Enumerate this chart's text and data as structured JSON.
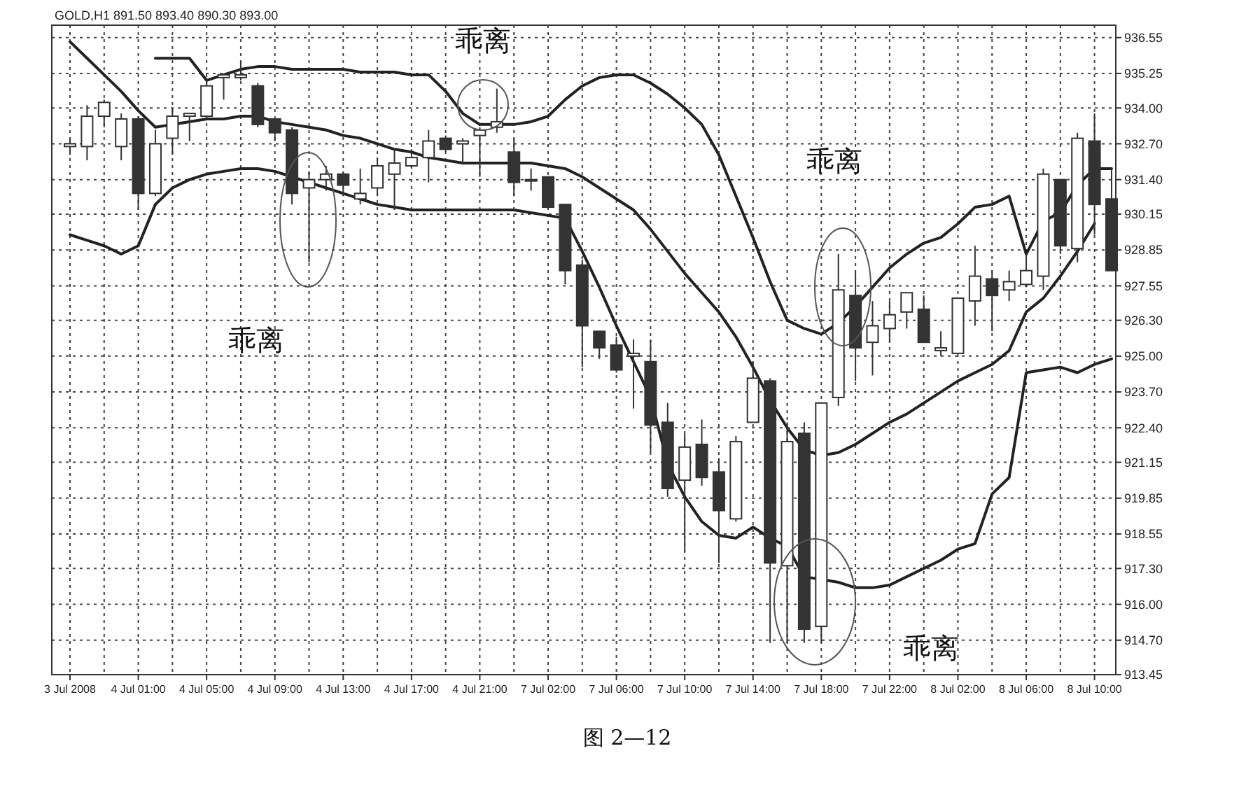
{
  "chart_data": {
    "type": "candlestick",
    "title": "GOLD,H1 891.50 893.40 890.30 893.00",
    "categories": [
      "3 Jul 2008",
      null,
      null,
      null,
      "4 Jul 01:00",
      null,
      null,
      null,
      "4 Jul 05:00",
      null,
      null,
      null,
      "4 Jul 09:00",
      null,
      null,
      null,
      "4 Jul 13:00",
      null,
      null,
      null,
      "4 Jul 17:00",
      null,
      null,
      null,
      "4 Jul 21:00",
      null,
      null,
      null,
      "7 Jul 02:00",
      null,
      null,
      null,
      "7 Jul 06:00",
      null,
      null,
      null,
      "7 Jul 10:00",
      null,
      null,
      null,
      "7 Jul 14:00",
      null,
      null,
      null,
      "7 Jul 18:00",
      null,
      null,
      null,
      "7 Jul 22:00",
      null,
      null,
      null,
      "8 Jul 02:00",
      null,
      null,
      null,
      "8 Jul 06:00",
      null,
      null,
      null,
      "8 Jul 10:00",
      null
    ],
    "color": "#333333",
    "ohlc": [
      [
        932.6,
        932.9,
        932.3,
        932.7
      ],
      [
        932.6,
        934.1,
        932.1,
        933.7
      ],
      [
        933.7,
        934.3,
        933.3,
        934.2
      ],
      [
        932.6,
        933.8,
        932.1,
        933.6
      ],
      [
        933.6,
        933.7,
        930.3,
        930.9
      ],
      [
        930.9,
        933.2,
        930.8,
        932.7
      ],
      [
        932.9,
        934.0,
        932.3,
        933.7
      ],
      [
        933.7,
        933.8,
        932.8,
        933.8
      ],
      [
        933.7,
        935.0,
        933.6,
        934.8
      ],
      [
        935.1,
        935.2,
        934.3,
        935.2
      ],
      [
        935.1,
        935.7,
        935.0,
        935.2
      ],
      [
        934.8,
        934.9,
        933.3,
        933.4
      ],
      [
        933.6,
        933.6,
        932.8,
        933.1
      ],
      [
        933.2,
        933.3,
        930.5,
        930.9
      ],
      [
        931.1,
        931.7,
        928.4,
        931.4
      ],
      [
        931.4,
        931.9,
        931.0,
        931.6
      ],
      [
        931.6,
        931.7,
        930.8,
        931.2
      ],
      [
        930.7,
        931.8,
        930.5,
        930.9
      ],
      [
        931.1,
        932.2,
        930.8,
        931.9
      ],
      [
        931.6,
        932.5,
        930.3,
        932.0
      ],
      [
        931.9,
        932.5,
        931.8,
        932.2
      ],
      [
        932.2,
        933.2,
        931.3,
        932.8
      ],
      [
        932.9,
        933.0,
        932.4,
        932.5
      ],
      [
        932.7,
        932.9,
        932.0,
        932.8
      ],
      [
        933.0,
        933.3,
        931.5,
        933.2
      ],
      [
        933.3,
        934.7,
        933.1,
        933.5
      ],
      [
        932.4,
        932.9,
        930.8,
        931.3
      ],
      [
        931.4,
        931.8,
        931.0,
        931.4
      ],
      [
        931.5,
        931.5,
        930.3,
        930.4
      ],
      [
        930.5,
        930.5,
        927.6,
        928.1
      ],
      [
        928.3,
        928.5,
        924.6,
        926.1
      ],
      [
        925.9,
        925.9,
        924.9,
        925.3
      ],
      [
        925.4,
        925.7,
        924.4,
        924.5
      ],
      [
        925.0,
        925.6,
        923.1,
        925.1
      ],
      [
        924.8,
        925.6,
        921.5,
        922.5
      ],
      [
        922.6,
        923.3,
        919.9,
        920.2
      ],
      [
        920.5,
        922.2,
        917.9,
        921.7
      ],
      [
        921.8,
        922.7,
        920.3,
        920.6
      ],
      [
        920.8,
        921.3,
        917.5,
        919.4
      ],
      [
        919.1,
        922.1,
        919.0,
        921.9
      ],
      [
        922.6,
        924.8,
        922.6,
        924.2
      ],
      [
        924.1,
        924.2,
        914.6,
        917.5
      ],
      [
        917.4,
        922.6,
        914.6,
        921.9
      ],
      [
        922.2,
        922.6,
        914.6,
        915.1
      ],
      [
        915.2,
        923.3,
        914.6,
        923.3
      ],
      [
        923.5,
        928.7,
        923.2,
        927.4
      ],
      [
        927.2,
        928.1,
        924.1,
        925.3
      ],
      [
        925.5,
        927.0,
        924.3,
        926.1
      ],
      [
        926.0,
        927.0,
        925.5,
        926.5
      ],
      [
        926.6,
        927.3,
        926.0,
        927.3
      ],
      [
        926.7,
        927.2,
        925.5,
        925.5
      ],
      [
        925.2,
        925.9,
        925.0,
        925.3
      ],
      [
        925.1,
        927.1,
        925.1,
        927.1
      ],
      [
        927.0,
        929.0,
        926.1,
        927.9
      ],
      [
        927.8,
        928.1,
        925.9,
        927.2
      ],
      [
        927.4,
        928.1,
        927.0,
        927.7
      ],
      [
        927.6,
        928.7,
        927.5,
        928.1
      ],
      [
        927.9,
        931.8,
        927.4,
        931.6
      ],
      [
        931.4,
        931.4,
        928.7,
        929.0
      ],
      [
        928.9,
        933.1,
        928.4,
        932.9
      ],
      [
        932.8,
        933.8,
        929.4,
        930.5
      ],
      [
        930.7,
        931.8,
        928.1,
        928.1
      ]
    ],
    "series": [
      {
        "type": "line",
        "color": "#222222",
        "values": [
          null,
          null,
          null,
          null,
          null,
          935.8,
          935.8,
          935.8,
          935.0,
          935.2,
          935.4,
          935.5,
          935.5,
          935.4,
          935.4,
          935.4,
          935.4,
          935.3,
          935.3,
          935.3,
          935.2,
          935.2,
          934.6,
          933.8,
          933.4,
          933.4,
          933.4,
          933.5,
          933.7,
          934.3,
          934.8,
          935.1,
          935.2,
          935.2,
          934.9,
          934.5,
          934.0,
          933.4,
          932.3,
          930.8,
          929.3,
          927.7,
          926.3,
          926.0,
          925.8,
          926.2,
          926.8,
          927.5,
          928.2,
          928.7,
          929.1,
          929.3,
          929.8,
          930.4,
          930.5,
          930.8,
          928.7,
          929.9,
          930.2,
          931.2,
          931.8,
          931.8
        ]
      },
      {
        "type": "line",
        "color": "#222222",
        "values": [
          936.4,
          935.8,
          935.2,
          934.6,
          933.9,
          933.3,
          933.4,
          933.5,
          933.6,
          933.6,
          933.7,
          933.7,
          933.5,
          933.4,
          933.3,
          933.2,
          933.0,
          932.9,
          932.7,
          932.5,
          932.4,
          932.2,
          932.1,
          932.0,
          932.0,
          932.0,
          932.0,
          932.0,
          931.9,
          931.8,
          931.5,
          931.1,
          930.7,
          930.3,
          929.6,
          928.8,
          928.0,
          927.3,
          926.6,
          925.7,
          924.6,
          923.4,
          922.4,
          921.6,
          921.4,
          921.5,
          921.8,
          922.2,
          922.6,
          922.9,
          923.3,
          923.7,
          924.1,
          924.4,
          924.7,
          925.2,
          926.6,
          927.1,
          927.9,
          928.8,
          929.8,
          null
        ]
      },
      {
        "type": "line",
        "color": "#222222",
        "values": [
          929.4,
          929.2,
          929.0,
          928.7,
          929.0,
          930.5,
          931.1,
          931.4,
          931.6,
          931.7,
          931.8,
          931.8,
          931.7,
          931.5,
          931.3,
          931.1,
          930.9,
          930.7,
          930.5,
          930.4,
          930.3,
          930.3,
          930.3,
          930.3,
          930.3,
          930.3,
          930.3,
          930.2,
          930.1,
          930.0,
          928.8,
          927.5,
          926.1,
          924.8,
          923.5,
          921.1,
          919.9,
          919.0,
          918.5,
          918.4,
          918.8,
          918.4,
          918.1,
          917.0,
          916.9,
          916.8,
          916.6,
          916.6,
          916.7,
          917.0,
          917.3,
          917.6,
          918.0,
          918.2,
          920.0,
          920.6,
          924.4,
          924.5,
          924.6,
          924.4,
          924.7,
          924.9
        ]
      }
    ],
    "ylim": [
      913.45,
      937.0
    ],
    "yticks": [
      936.55,
      935.25,
      {
        "value": 934.0,
        "label": "934.00"
      },
      {
        "value": 932.7,
        "label": "932.70"
      },
      {
        "value": 931.4,
        "label": "931.40"
      },
      930.15,
      928.85,
      927.55,
      {
        "value": 926.3,
        "label": "926.30"
      },
      {
        "value": 925.0,
        "label": "925.00"
      },
      {
        "value": 923.7,
        "label": "923.70"
      },
      {
        "value": 922.4,
        "label": "922.40"
      },
      921.15,
      919.85,
      918.55,
      {
        "value": 917.3,
        "label": "917.30"
      },
      {
        "value": 916.0,
        "label": "916.00"
      },
      {
        "value": 914.7,
        "label": "914.70"
      },
      913.45
    ],
    "grid": true,
    "annotations": [
      "乖离",
      "乖离",
      "乖离",
      "乖离",
      "图 2—12"
    ]
  }
}
